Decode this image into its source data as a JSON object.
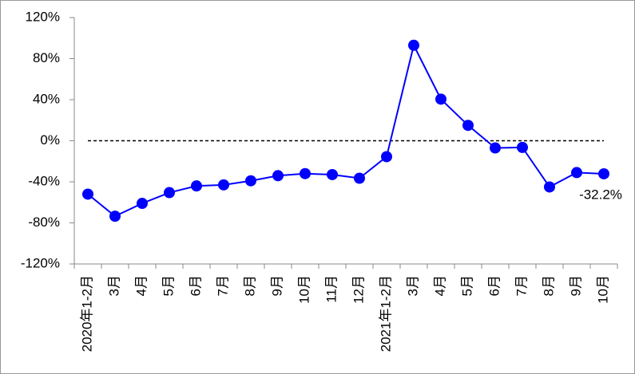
{
  "chart_data": {
    "type": "line",
    "categories": [
      "2020年1-2月",
      "3月",
      "4月",
      "5月",
      "6月",
      "7月",
      "8月",
      "9月",
      "10月",
      "11月",
      "12月",
      "2021年1-2月",
      "3月",
      "4月",
      "5月",
      "6月",
      "7月",
      "8月",
      "9月",
      "10月"
    ],
    "values": [
      -52,
      -73.5,
      -61,
      -50.5,
      -44,
      -43,
      -39,
      -34,
      -32,
      -33,
      -36.5,
      -15.5,
      93,
      40.5,
      15,
      -7,
      -6.5,
      -45,
      -31,
      -32.2
    ],
    "value_labels": [
      null,
      null,
      null,
      null,
      null,
      null,
      null,
      null,
      null,
      null,
      null,
      null,
      null,
      null,
      null,
      null,
      null,
      null,
      null,
      "-32.2%"
    ],
    "color": "#0000ff",
    "ylim": [
      -120,
      120
    ],
    "yticks": [
      {
        "value": -120,
        "label": "-120%"
      },
      {
        "value": -80,
        "label": "-80%"
      },
      {
        "value": -40,
        "label": "-40%"
      },
      {
        "value": 0,
        "label": "0%"
      },
      {
        "value": 40,
        "label": "40%"
      },
      {
        "value": 80,
        "label": "80%"
      },
      {
        "value": 120,
        "label": "120%"
      }
    ],
    "zero_line": true,
    "grid": false
  }
}
